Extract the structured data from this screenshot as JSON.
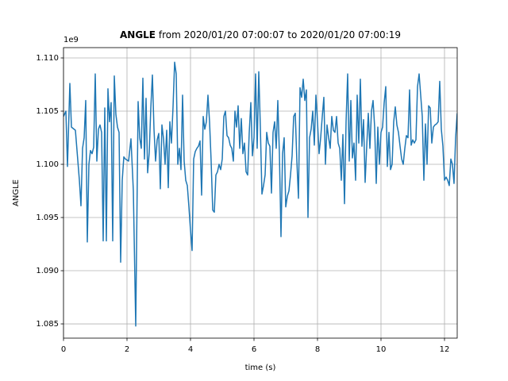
{
  "chart_data": {
    "type": "line",
    "title": {
      "bold": "ANGLE",
      "text": "from 2020/01/20 07:00:07 to 2020/01/20 07:00:19"
    },
    "x_label": "time (s)",
    "y_label": "ANGLE",
    "y_offset_text": "1e9",
    "xlim": [
      0,
      12.4
    ],
    "ylim": [
      1.08366,
      1.11097
    ],
    "xticks": [
      0,
      2,
      4,
      6,
      8,
      10,
      12
    ],
    "yticks": [
      {
        "value": 1.085,
        "label": "1.085"
      },
      {
        "value": 1.09,
        "label": "1.090"
      },
      {
        "value": 1.095,
        "label": "1.095"
      },
      {
        "value": 1.1,
        "label": "1.100"
      },
      {
        "value": 1.105,
        "label": "1.105"
      },
      {
        "value": 1.11,
        "label": "1.110"
      }
    ],
    "grid": true,
    "series": [
      {
        "color": "#1f77b4",
        "x": [
          0,
          0.075,
          0.125,
          0.2,
          0.25,
          0.375,
          0.5,
          0.55,
          0.6,
          0.65,
          0.7,
          0.75,
          0.8,
          0.85,
          0.9,
          0.95,
          1.0,
          1.05,
          1.1,
          1.15,
          1.2,
          1.25,
          1.3,
          1.35,
          1.4,
          1.45,
          1.5,
          1.55,
          1.6,
          1.65,
          1.7,
          1.75,
          1.8,
          1.85,
          1.9,
          1.95,
          2.05,
          2.125,
          2.2,
          2.275,
          2.35,
          2.4,
          2.45,
          2.5,
          2.55,
          2.6,
          2.65,
          2.7,
          2.75,
          2.8,
          2.85,
          2.9,
          2.95,
          3.0,
          3.05,
          3.1,
          3.15,
          3.2,
          3.25,
          3.3,
          3.35,
          3.4,
          3.45,
          3.5,
          3.55,
          3.6,
          3.65,
          3.7,
          3.75,
          3.8,
          3.85,
          3.9,
          3.95,
          4.0,
          4.05,
          4.1,
          4.15,
          4.2,
          4.25,
          4.3,
          4.35,
          4.4,
          4.45,
          4.5,
          4.55,
          4.6,
          4.65,
          4.7,
          4.75,
          4.8,
          4.85,
          4.9,
          4.95,
          5.0,
          5.05,
          5.1,
          5.15,
          5.2,
          5.25,
          5.3,
          5.35,
          5.4,
          5.45,
          5.5,
          5.55,
          5.6,
          5.65,
          5.7,
          5.75,
          5.8,
          5.85,
          5.9,
          5.95,
          6.0,
          6.05,
          6.1,
          6.15,
          6.2,
          6.25,
          6.3,
          6.35,
          6.4,
          6.45,
          6.5,
          6.55,
          6.6,
          6.65,
          6.7,
          6.75,
          6.8,
          6.85,
          6.9,
          6.95,
          7.0,
          7.05,
          7.1,
          7.15,
          7.2,
          7.25,
          7.3,
          7.35,
          7.4,
          7.45,
          7.5,
          7.55,
          7.6,
          7.65,
          7.7,
          7.75,
          7.8,
          7.85,
          7.9,
          7.95,
          8.0,
          8.05,
          8.1,
          8.15,
          8.2,
          8.25,
          8.3,
          8.35,
          8.4,
          8.45,
          8.5,
          8.55,
          8.6,
          8.65,
          8.7,
          8.75,
          8.8,
          8.85,
          8.9,
          8.95,
          9.0,
          9.05,
          9.1,
          9.15,
          9.2,
          9.25,
          9.3,
          9.35,
          9.4,
          9.45,
          9.5,
          9.55,
          9.6,
          9.65,
          9.7,
          9.75,
          9.8,
          9.85,
          9.9,
          9.95,
          10.0,
          10.05,
          10.1,
          10.15,
          10.2,
          10.25,
          10.3,
          10.35,
          10.4,
          10.45,
          10.5,
          10.55,
          10.6,
          10.65,
          10.7,
          10.75,
          10.8,
          10.85,
          10.9,
          10.95,
          11.0,
          11.05,
          11.1,
          11.15,
          11.2,
          11.25,
          11.3,
          11.35,
          11.4,
          11.45,
          11.5,
          11.55,
          11.6,
          11.65,
          11.7,
          11.75,
          11.8,
          11.85,
          11.9,
          11.95,
          12.0,
          12.05,
          12.1,
          12.15,
          12.2,
          12.25,
          12.3,
          12.35,
          12.4
        ],
        "values": [
          1.1045,
          1.105,
          1.0998,
          1.1076,
          1.1035,
          1.1032,
          1.0985,
          1.0961,
          1.1015,
          1.1025,
          1.106,
          1.0927,
          1.1,
          1.1013,
          1.101,
          1.1016,
          1.1085,
          1.1003,
          1.1033,
          1.1037,
          1.103,
          1.0928,
          1.1053,
          1.0928,
          1.1071,
          1.104,
          1.1058,
          1.0928,
          1.1083,
          1.1047,
          1.1035,
          1.103,
          1.0908,
          1.0985,
          1.1007,
          1.1005,
          1.1003,
          1.1024,
          1.0975,
          1.0848,
          1.1059,
          1.1025,
          1.1015,
          1.1081,
          1.1005,
          1.1062,
          1.0992,
          1.1011,
          1.1053,
          1.1084,
          1.1033,
          1.1003,
          1.1023,
          1.1029,
          1.0977,
          1.1037,
          1.1024,
          1.1,
          1.1032,
          1.0978,
          1.104,
          1.102,
          1.1054,
          1.1096,
          1.1085,
          1.1,
          1.1015,
          1.0995,
          1.1065,
          1.1003,
          1.0985,
          1.098,
          1.096,
          1.0938,
          1.0919,
          1.1005,
          1.1012,
          1.1015,
          1.1017,
          1.1022,
          1.0971,
          1.1045,
          1.1033,
          1.104,
          1.1065,
          1.104,
          1.1003,
          1.0957,
          1.0955,
          1.099,
          1.0993,
          1.1,
          1.0995,
          1.1005,
          1.1045,
          1.105,
          1.1027,
          1.1025,
          1.1018,
          1.1015,
          1.1003,
          1.105,
          1.1035,
          1.1055,
          1.1015,
          1.1043,
          1.101,
          1.102,
          1.0993,
          1.099,
          1.103,
          1.1058,
          1.1008,
          1.1025,
          1.1085,
          1.1015,
          1.1087,
          1.1035,
          1.0972,
          1.098,
          1.099,
          1.103,
          1.102,
          1.1017,
          1.0973,
          1.103,
          1.104,
          1.1015,
          1.106,
          1.101,
          1.0932,
          1.101,
          1.1025,
          1.096,
          1.097,
          1.0975,
          1.099,
          1.1008,
          1.1045,
          1.1048,
          1.1003,
          1.0968,
          1.1072,
          1.1063,
          1.108,
          1.106,
          1.107,
          1.095,
          1.1025,
          1.1033,
          1.105,
          1.1018,
          1.1065,
          1.104,
          1.101,
          1.1025,
          1.1045,
          1.1063,
          1.1,
          1.1037,
          1.1025,
          1.1015,
          1.1045,
          1.1032,
          1.103,
          1.1045,
          1.102,
          1.1015,
          1.0985,
          1.1028,
          1.0963,
          1.104,
          1.1085,
          1.1003,
          1.106,
          1.1006,
          1.102,
          1.0985,
          1.1065,
          1.102,
          1.108,
          1.1017,
          1.1042,
          1.0983,
          1.1017,
          1.1048,
          1.1015,
          1.105,
          1.106,
          1.1035,
          1.0982,
          1.1035,
          1.1,
          1.103,
          1.1035,
          1.1058,
          1.1073,
          1.0998,
          1.103,
          1.0995,
          1.1,
          1.104,
          1.1054,
          1.1037,
          1.103,
          1.1017,
          1.1005,
          1.1,
          1.1015,
          1.1027,
          1.1025,
          1.107,
          1.1018,
          1.1023,
          1.102,
          1.1023,
          1.1073,
          1.1085,
          1.1065,
          1.1045,
          1.0985,
          1.1038,
          1.1,
          1.1055,
          1.1053,
          1.102,
          1.1035,
          1.1037,
          1.1038,
          1.104,
          1.1078,
          1.1033,
          1.1017,
          1.0985,
          1.0988,
          1.0985,
          1.098,
          1.1005,
          1.1,
          1.0982,
          1.1025,
          1.1048
        ]
      }
    ]
  }
}
